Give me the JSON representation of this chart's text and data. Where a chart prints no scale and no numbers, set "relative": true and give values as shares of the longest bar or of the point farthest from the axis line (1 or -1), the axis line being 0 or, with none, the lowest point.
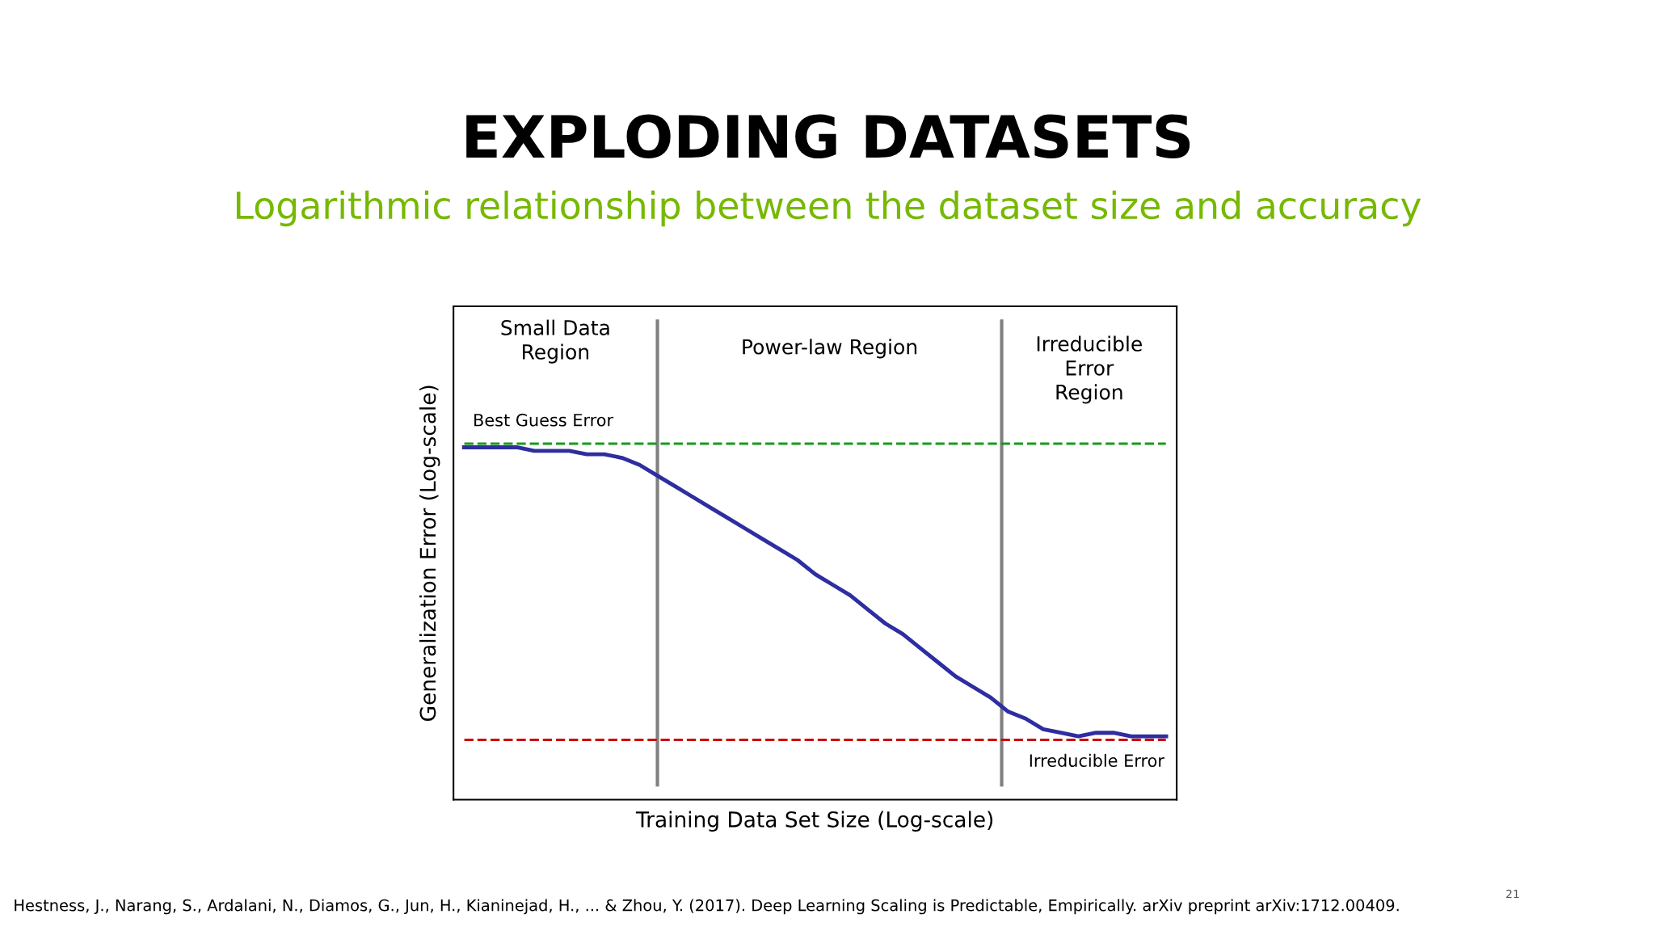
{
  "chart_data": {
    "type": "line",
    "title": "EXPLODING DATASETS",
    "subtitle": "Logarithmic relationship between the dataset size and accuracy",
    "xlabel": "Training Data Set Size (Log-scale)",
    "ylabel": "Generalization Error (Log-scale)",
    "relative": true,
    "categories": [
      null,
      null,
      null,
      null,
      null,
      null,
      null,
      null,
      null,
      null,
      null,
      null,
      null,
      null,
      null,
      null,
      null,
      null,
      null,
      null,
      null,
      null,
      null,
      null,
      null,
      null,
      null,
      null,
      null,
      null,
      null,
      null,
      null,
      null,
      null,
      null,
      null,
      null,
      null,
      null,
      null
    ],
    "series": [
      {
        "color": "#2e2ea0",
        "values": [
          1.0,
          1.0,
          1.0,
          1.0,
          0.99,
          0.99,
          0.99,
          0.98,
          0.98,
          0.97,
          0.95,
          0.92,
          0.89,
          0.86,
          0.83,
          0.8,
          0.77,
          0.74,
          0.71,
          0.68,
          0.64,
          0.61,
          0.58,
          0.54,
          0.5,
          0.47,
          0.43,
          0.39,
          0.35,
          0.32,
          0.29,
          0.25,
          0.23,
          0.2,
          0.19,
          0.18,
          0.19,
          0.19,
          0.18,
          0.18,
          0.18
        ]
      }
    ],
    "ref_lines": [
      {
        "axis": "y",
        "value": 1.01,
        "label": "Best Guess Error",
        "color": "#1a9a1a",
        "line_style": "dashed"
      },
      {
        "axis": "y",
        "value": 0.17,
        "label": "Irreducible Error",
        "color": "#cc0000",
        "line_style": "dashed"
      }
    ],
    "annotations": [
      "Small Data\nRegion",
      "Power-law Region",
      "Irreducible\nError\nRegion",
      "Hestness, J., Narang, S., Ardalani, N., Diamos, G., Jun, H., Kianinejad, H., ... & Zhou, Y. (2017). Deep Learning Scaling is Predictable, Empirically. arXiv preprint arXiv:1712.00409.",
      "21"
    ],
    "marker": "none",
    "line_style": "solid"
  }
}
